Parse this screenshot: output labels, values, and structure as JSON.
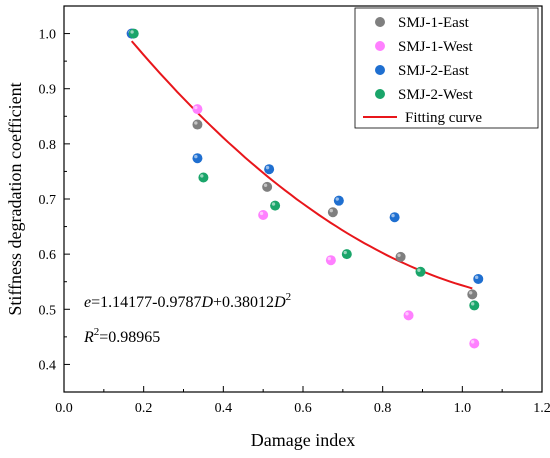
{
  "chart_data": {
    "type": "scatter",
    "xlabel": "Damage index",
    "ylabel": "Stiffness degradation coefficient",
    "xlim": [
      0.0,
      1.2
    ],
    "ylim": [
      0.35,
      1.05
    ],
    "xticks": [
      "0.0",
      "0.2",
      "0.4",
      "0.6",
      "0.8",
      "1.0",
      "1.2"
    ],
    "yticks": [
      "0.4",
      "0.5",
      "0.6",
      "0.7",
      "0.8",
      "0.9",
      "1.0"
    ],
    "xtick_values": [
      0.0,
      0.2,
      0.4,
      0.6,
      0.8,
      1.0,
      1.2
    ],
    "ytick_values": [
      0.4,
      0.5,
      0.6,
      0.7,
      0.8,
      0.9,
      1.0
    ],
    "grid": false,
    "legend_position": "top-right",
    "series": [
      {
        "name": "SMJ-1-East",
        "color": "#7f7f7f",
        "x": [
          0.17,
          0.335,
          0.51,
          0.675,
          0.845,
          1.025
        ],
        "y": [
          1.0,
          0.835,
          0.722,
          0.676,
          0.595,
          0.527
        ]
      },
      {
        "name": "SMJ-1-West",
        "color": "#ff80ff",
        "x": [
          0.17,
          0.335,
          0.5,
          0.67,
          0.865,
          1.03
        ],
        "y": [
          1.0,
          0.863,
          0.671,
          0.589,
          0.489,
          0.438
        ]
      },
      {
        "name": "SMJ-2-East",
        "color": "#1f6fd0",
        "x": [
          0.17,
          0.335,
          0.515,
          0.69,
          0.83,
          1.04
        ],
        "y": [
          1.0,
          0.774,
          0.754,
          0.697,
          0.667,
          0.555
        ]
      },
      {
        "name": "SMJ-2-West",
        "color": "#1aa56a",
        "x": [
          0.175,
          0.35,
          0.53,
          0.71,
          0.895,
          1.03
        ],
        "y": [
          1.0,
          0.739,
          0.688,
          0.6,
          0.568,
          0.507
        ]
      }
    ],
    "fit": {
      "name": "Fitting curve",
      "color": "#e8161b",
      "a": 1.14177,
      "b": -0.9787,
      "c": 0.38012,
      "x_range": [
        0.17,
        1.025
      ]
    }
  },
  "equation": {
    "lhs": "e",
    "middle": "=1.14177-0.9787",
    "d1": "D",
    "plus": "+0.38012",
    "d2": "D",
    "exp": "2",
    "r_label": "R",
    "r_exp": "2",
    "r_value": "=0.98965"
  }
}
